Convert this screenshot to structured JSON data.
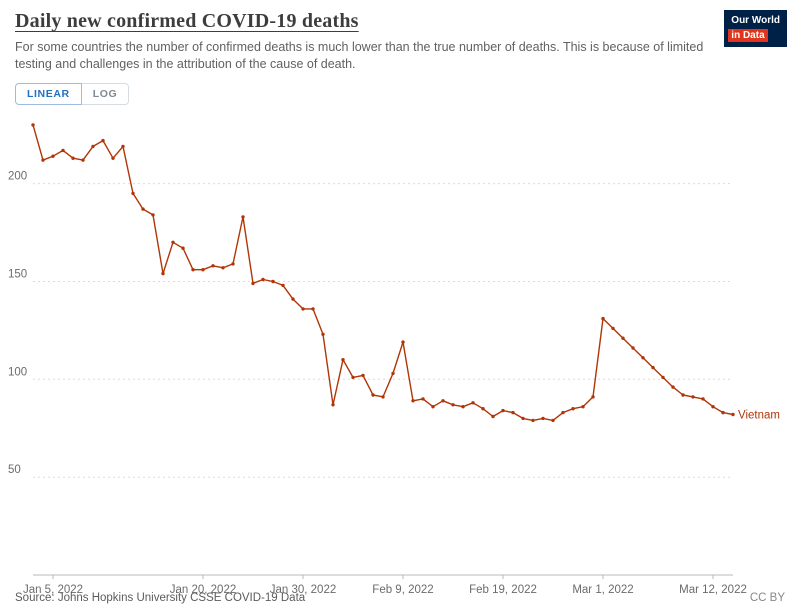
{
  "header": {
    "title": "Daily new confirmed COVID-19 deaths",
    "subtitle": "For some countries the number of confirmed deaths is much lower than the true number of deaths. This is because of limited testing and challenges in the attribution of the cause of death.",
    "logo": {
      "line1": "Our World",
      "line2": "in Data",
      "bg_color": "#002147",
      "accent_color": "#e0351c"
    }
  },
  "controls": {
    "linear_label": "LINEAR",
    "log_label": "LOG",
    "active": "LINEAR",
    "active_color": "#2470c2"
  },
  "chart_data": {
    "type": "line",
    "title": "Daily new confirmed COVID-19 deaths",
    "xlabel": "",
    "ylabel": "",
    "ylim": [
      0,
      232
    ],
    "yticks": [
      50,
      100,
      150,
      200
    ],
    "grid": true,
    "legend_position": "end-of-line-label",
    "x": [
      "2022-01-03",
      "2022-01-04",
      "2022-01-05",
      "2022-01-06",
      "2022-01-07",
      "2022-01-08",
      "2022-01-09",
      "2022-01-10",
      "2022-01-11",
      "2022-01-12",
      "2022-01-13",
      "2022-01-14",
      "2022-01-15",
      "2022-01-16",
      "2022-01-17",
      "2022-01-18",
      "2022-01-19",
      "2022-01-20",
      "2022-01-21",
      "2022-01-22",
      "2022-01-23",
      "2022-01-24",
      "2022-01-25",
      "2022-01-26",
      "2022-01-27",
      "2022-01-28",
      "2022-01-29",
      "2022-01-30",
      "2022-01-31",
      "2022-02-01",
      "2022-02-02",
      "2022-02-03",
      "2022-02-04",
      "2022-02-05",
      "2022-02-06",
      "2022-02-07",
      "2022-02-08",
      "2022-02-09",
      "2022-02-10",
      "2022-02-11",
      "2022-02-12",
      "2022-02-13",
      "2022-02-14",
      "2022-02-15",
      "2022-02-16",
      "2022-02-17",
      "2022-02-18",
      "2022-02-19",
      "2022-02-20",
      "2022-02-21",
      "2022-02-22",
      "2022-02-23",
      "2022-02-24",
      "2022-02-25",
      "2022-02-26",
      "2022-02-27",
      "2022-02-28",
      "2022-03-01",
      "2022-03-02",
      "2022-03-03",
      "2022-03-04",
      "2022-03-05",
      "2022-03-06",
      "2022-03-07",
      "2022-03-08",
      "2022-03-09",
      "2022-03-10",
      "2022-03-11",
      "2022-03-12",
      "2022-03-13",
      "2022-03-14"
    ],
    "xticks": [
      {
        "label": "Jan 5, 2022",
        "index": 2
      },
      {
        "label": "Jan 20, 2022",
        "index": 17
      },
      {
        "label": "Jan 30, 2022",
        "index": 27
      },
      {
        "label": "Feb 9, 2022",
        "index": 37
      },
      {
        "label": "Feb 19, 2022",
        "index": 47
      },
      {
        "label": "Mar 1, 2022",
        "index": 57
      },
      {
        "label": "Mar 12, 2022",
        "index": 68
      }
    ],
    "series": [
      {
        "name": "Vietnam",
        "color": "#b13507",
        "values": [
          230,
          212,
          214,
          217,
          213,
          212,
          219,
          222,
          213,
          219,
          195,
          187,
          184,
          154,
          170,
          167,
          156,
          156,
          158,
          157,
          159,
          183,
          149,
          151,
          150,
          148,
          141,
          136,
          136,
          123,
          87,
          110,
          101,
          102,
          92,
          91,
          103,
          119,
          89,
          90,
          86,
          89,
          87,
          86,
          88,
          85,
          81,
          84,
          83,
          80,
          79,
          80,
          79,
          83,
          85,
          86,
          91,
          131,
          126,
          121,
          116,
          111,
          106,
          101,
          96,
          92,
          91,
          90,
          86,
          83,
          82
        ]
      }
    ]
  },
  "footer": {
    "source": "Source: Johns Hopkins University CSSE COVID-19 Data",
    "license": "CC BY"
  }
}
